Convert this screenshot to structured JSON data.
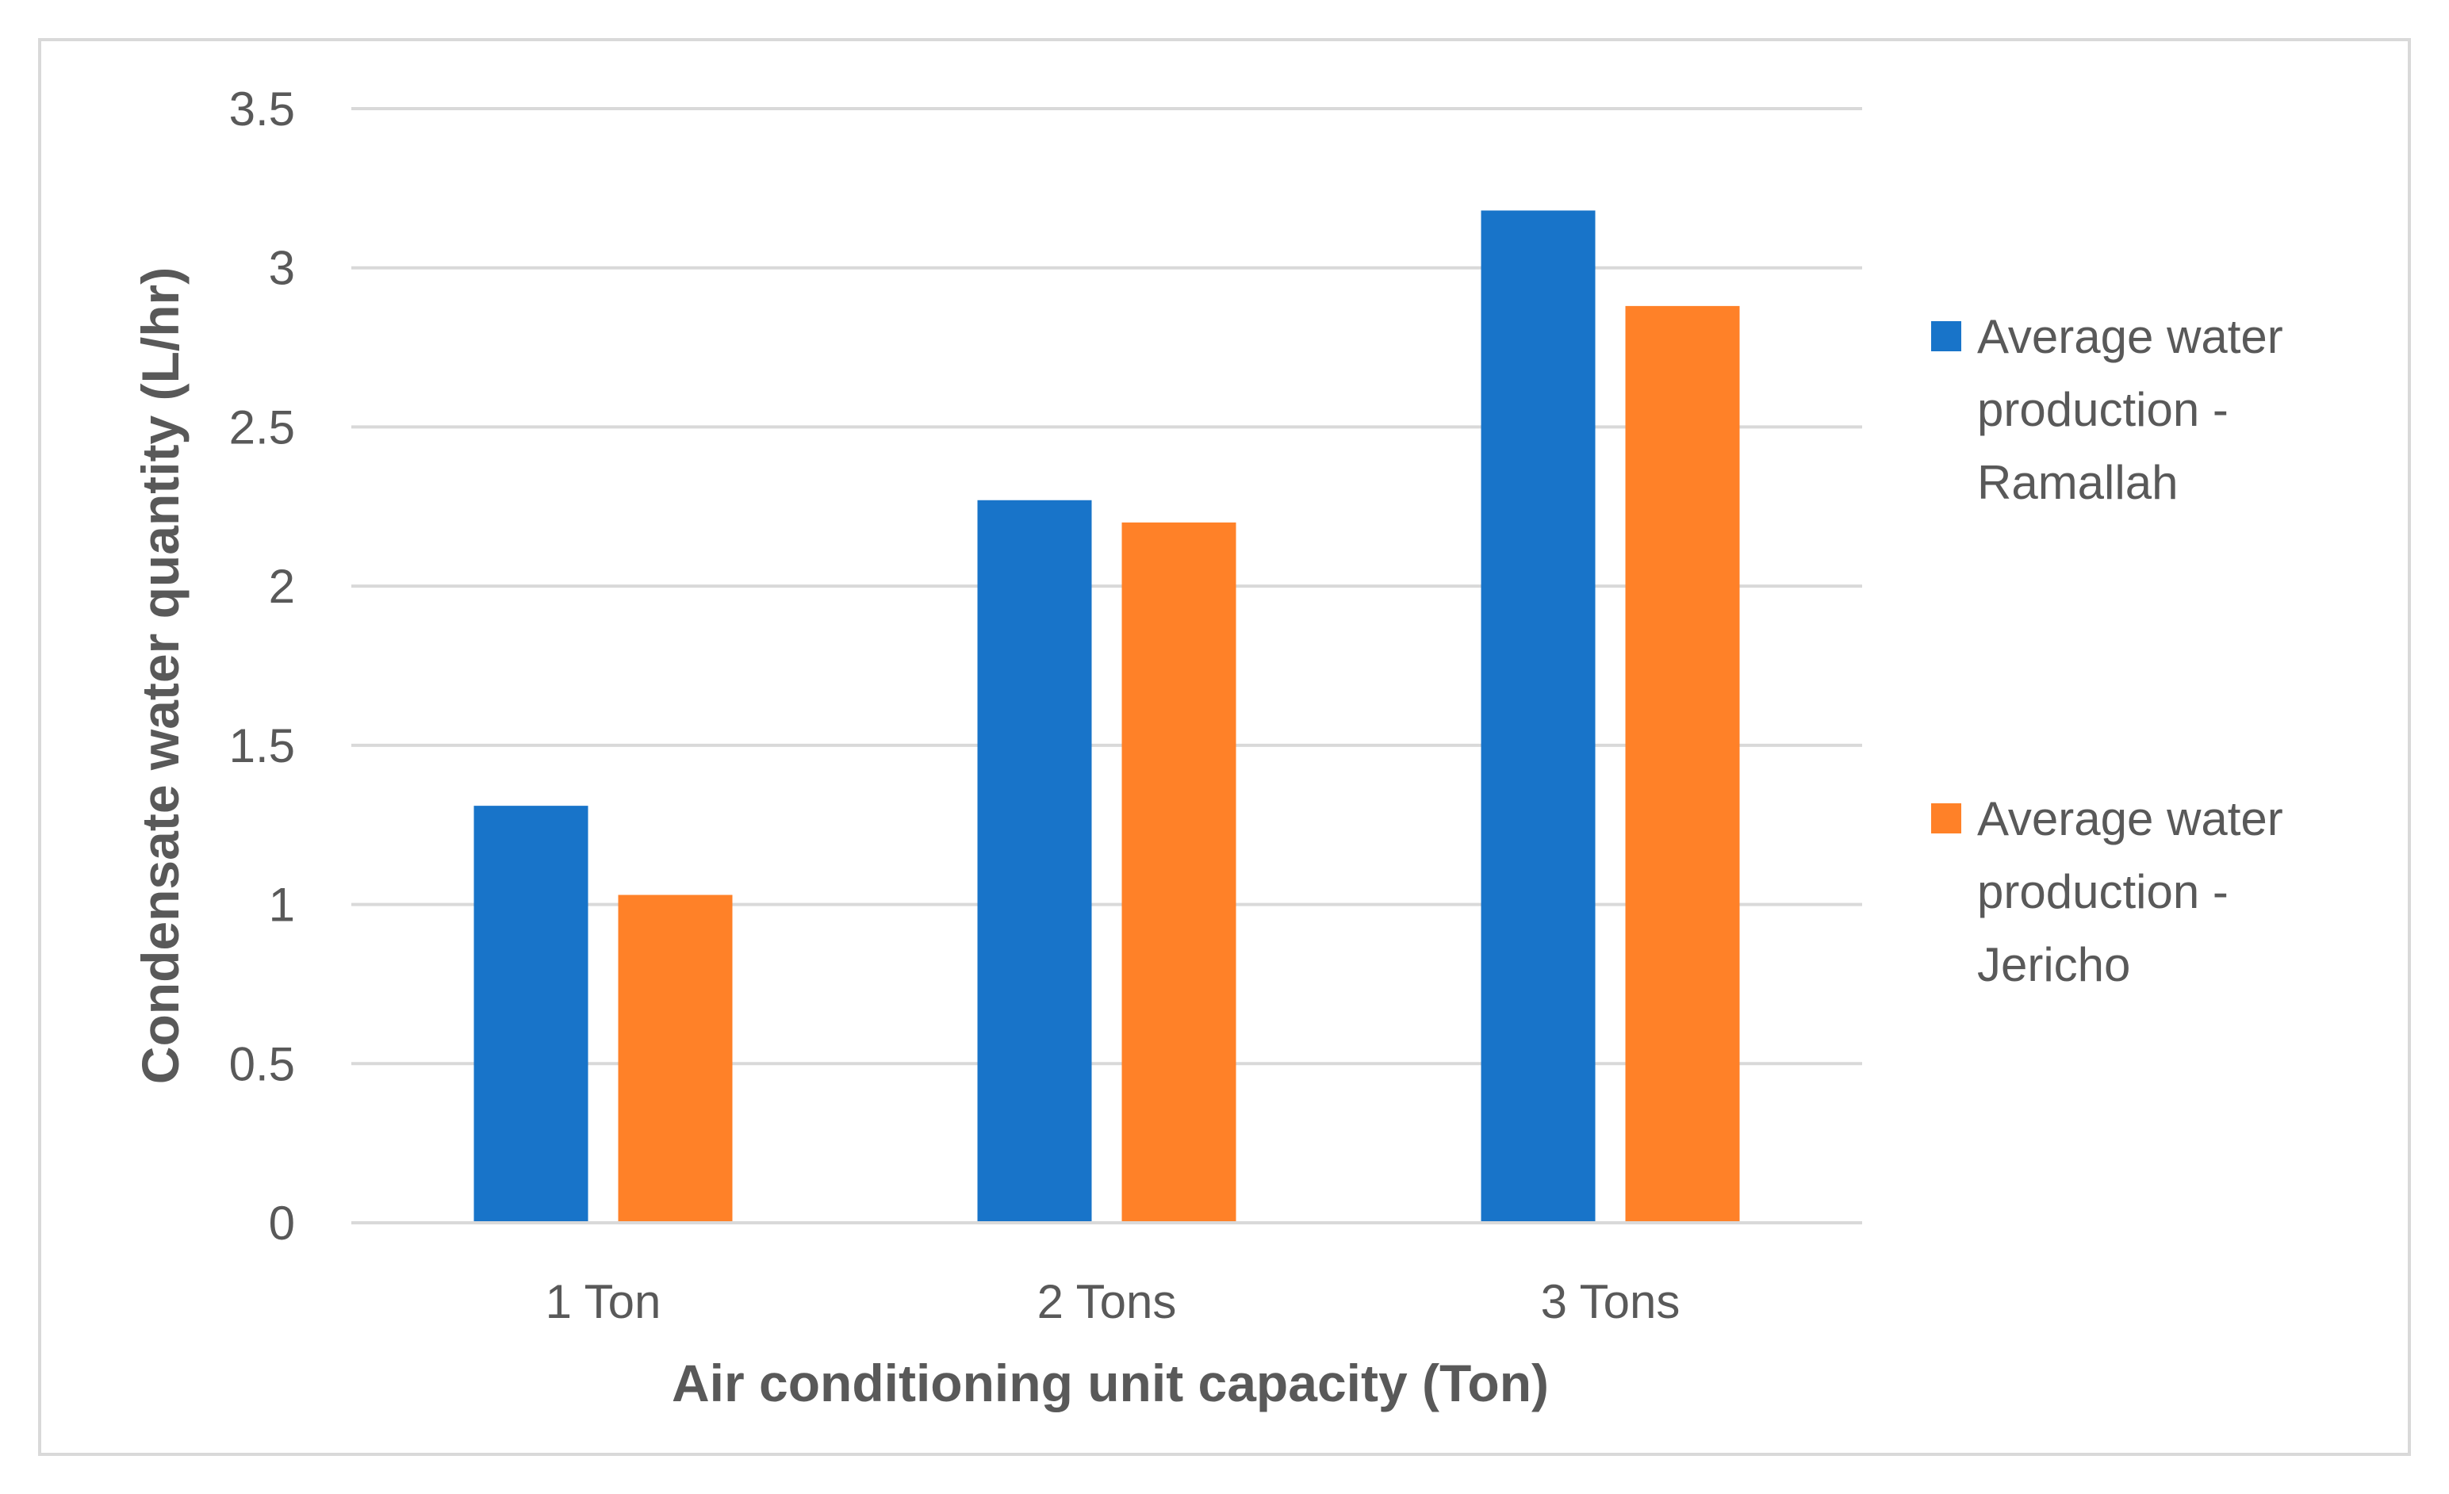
{
  "chart_data": {
    "type": "bar",
    "title": "",
    "xlabel": "Air conditioning unit capacity (Ton)",
    "ylabel": "Condensate water quantity (L/hr)",
    "categories": [
      "1 Ton",
      "2 Tons",
      "3 Tons"
    ],
    "ylim": [
      0,
      3.5
    ],
    "yticks": [
      0,
      0.5,
      1,
      1.5,
      2,
      2.5,
      3,
      3.5
    ],
    "ytick_labels": [
      "0",
      "0.5",
      "1",
      "1.5",
      "2",
      "2.5",
      "3",
      "3.5"
    ],
    "grid": true,
    "legend_position": "right",
    "series": [
      {
        "name": "Average water production - Ramallah",
        "legend_lines": [
          "Average water",
          "production -",
          "Ramallah"
        ],
        "color": "#1874c9",
        "values": [
          1.31,
          2.27,
          3.18
        ]
      },
      {
        "name": "Average water production - Jericho",
        "legend_lines": [
          "Average water",
          "production -",
          "Jericho"
        ],
        "color": "#ff8128",
        "values": [
          1.03,
          2.2,
          2.88
        ]
      }
    ]
  }
}
